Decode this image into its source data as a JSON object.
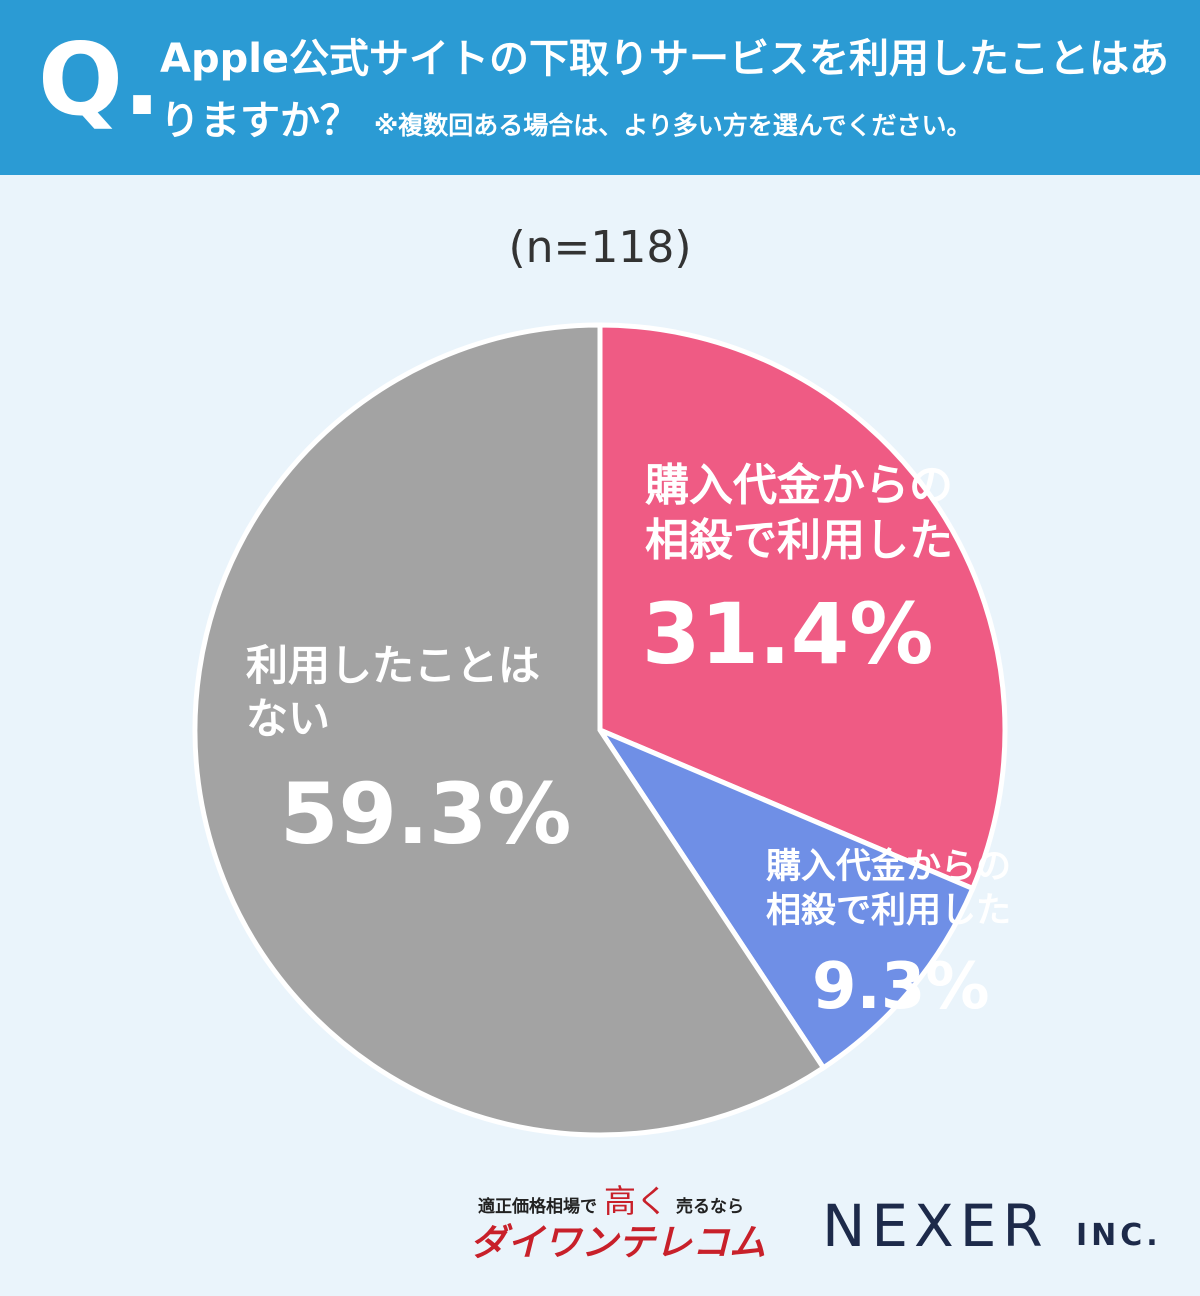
{
  "chart_data": {
    "type": "pie",
    "question_mark": "Q.",
    "title": "Apple公式サイトの下取りサービスを利用したことはありますか？",
    "note": "※複数回ある場合は、より多い方を選んでください。",
    "subtitle": "(n=118)",
    "categories": [
      "購入代金からの相殺で利用した",
      "購入代金からの相殺で利用した",
      "利用したことはない"
    ],
    "values": [
      31.4,
      9.3,
      59.3
    ],
    "value_labels": [
      "31.4%",
      "9.3%",
      "59.3%"
    ],
    "colors": [
      "#ef5b84",
      "#6f8fe6",
      "#a3a3a3"
    ]
  },
  "logos": {
    "daiwan_tagline": [
      "適正価格相場で",
      "高く",
      "売るなら"
    ],
    "daiwan_name": "ダイワンテレコム",
    "nexer": "NEXER",
    "nexer_suffix": "INC."
  }
}
